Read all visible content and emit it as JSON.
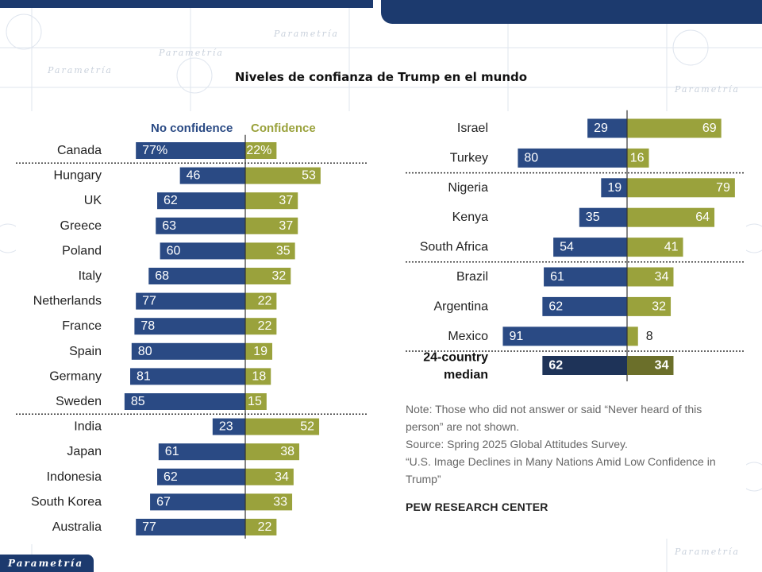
{
  "title": "Niveles de confianza de Trump en el mundo",
  "legend": {
    "no_confidence": "No confidence",
    "confidence": "Confidence"
  },
  "colors": {
    "no_confidence": "#2a4a84",
    "confidence": "#9aa23c",
    "median_no": "#1e3358",
    "median_yes": "#6b6f2a",
    "header_bar": "#1c3a6e"
  },
  "chart_data": {
    "type": "bar",
    "orientation": "horizontal-diverging",
    "title": "Niveles de confianza de Trump en el mundo",
    "series": [
      {
        "name": "No confidence",
        "color": "#2a4a84"
      },
      {
        "name": "Confidence",
        "color": "#9aa23c"
      }
    ],
    "left_panel": [
      {
        "country": "Canada",
        "no": 77,
        "yes": 22,
        "no_label": "77%",
        "yes_label": "22%"
      },
      {
        "country": "Hungary",
        "no": 46,
        "yes": 53,
        "no_label": "46",
        "yes_label": "53"
      },
      {
        "country": "UK",
        "no": 62,
        "yes": 37,
        "no_label": "62",
        "yes_label": "37"
      },
      {
        "country": "Greece",
        "no": 63,
        "yes": 37,
        "no_label": "63",
        "yes_label": "37"
      },
      {
        "country": "Poland",
        "no": 60,
        "yes": 35,
        "no_label": "60",
        "yes_label": "35"
      },
      {
        "country": "Italy",
        "no": 68,
        "yes": 32,
        "no_label": "68",
        "yes_label": "32"
      },
      {
        "country": "Netherlands",
        "no": 77,
        "yes": 22,
        "no_label": "77",
        "yes_label": "22"
      },
      {
        "country": "France",
        "no": 78,
        "yes": 22,
        "no_label": "78",
        "yes_label": "22"
      },
      {
        "country": "Spain",
        "no": 80,
        "yes": 19,
        "no_label": "80",
        "yes_label": "19"
      },
      {
        "country": "Germany",
        "no": 81,
        "yes": 18,
        "no_label": "81",
        "yes_label": "18"
      },
      {
        "country": "Sweden",
        "no": 85,
        "yes": 15,
        "no_label": "85",
        "yes_label": "15"
      },
      {
        "country": "India",
        "no": 23,
        "yes": 52,
        "no_label": "23",
        "yes_label": "52"
      },
      {
        "country": "Japan",
        "no": 61,
        "yes": 38,
        "no_label": "61",
        "yes_label": "38"
      },
      {
        "country": "Indonesia",
        "no": 62,
        "yes": 34,
        "no_label": "62",
        "yes_label": "34"
      },
      {
        "country": "South Korea",
        "no": 67,
        "yes": 33,
        "no_label": "67",
        "yes_label": "33"
      },
      {
        "country": "Australia",
        "no": 77,
        "yes": 22,
        "no_label": "77",
        "yes_label": "22"
      }
    ],
    "left_dividers_after": [
      0,
      10
    ],
    "right_panel": [
      {
        "country": "Israel",
        "no": 29,
        "yes": 69,
        "no_label": "29",
        "yes_label": "69"
      },
      {
        "country": "Turkey",
        "no": 80,
        "yes": 16,
        "no_label": "80",
        "yes_label": "16"
      },
      {
        "country": "Nigeria",
        "no": 19,
        "yes": 79,
        "no_label": "19",
        "yes_label": "79"
      },
      {
        "country": "Kenya",
        "no": 35,
        "yes": 64,
        "no_label": "35",
        "yes_label": "64"
      },
      {
        "country": "South Africa",
        "no": 54,
        "yes": 41,
        "no_label": "54",
        "yes_label": "41"
      },
      {
        "country": "Brazil",
        "no": 61,
        "yes": 34,
        "no_label": "61",
        "yes_label": "34"
      },
      {
        "country": "Argentina",
        "no": 62,
        "yes": 32,
        "no_label": "62",
        "yes_label": "32"
      },
      {
        "country": "Mexico",
        "no": 91,
        "yes": 8,
        "no_label": "91",
        "yes_label": "8"
      }
    ],
    "right_dividers_after": [
      1,
      4,
      7
    ],
    "median": {
      "label_line1": "24-country",
      "label_line2": "median",
      "no": 62,
      "yes": 34,
      "no_label": "62",
      "yes_label": "34"
    }
  },
  "notes": [
    "Note: Those who did not answer or said “Never heard of this",
    "person” are not shown.",
    "Source: Spring 2025 Global Attitudes Survey.",
    "“U.S. Image Declines in Many Nations Amid Low Confidence in",
    "Trump”"
  ],
  "source_org": "PEW RESEARCH CENTER",
  "logo_text": "Parametría",
  "watermark_text": "Parametría"
}
